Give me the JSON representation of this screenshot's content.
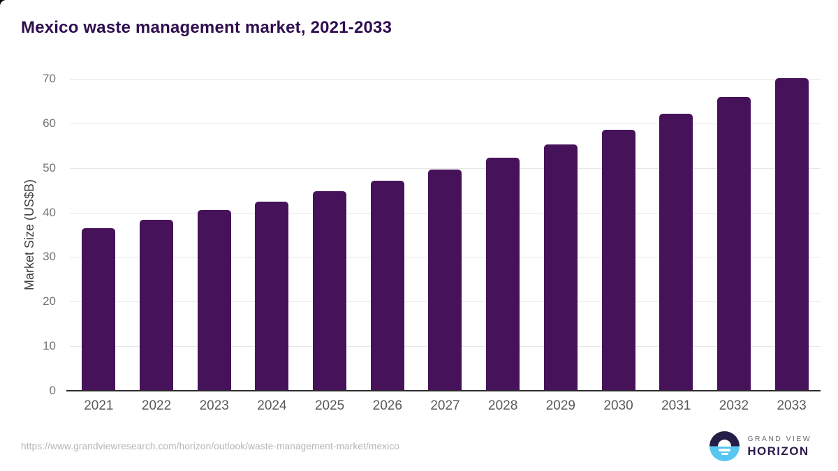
{
  "title": "Mexico waste management market, 2021-2033",
  "chart_data": {
    "type": "bar",
    "categories": [
      "2021",
      "2022",
      "2023",
      "2024",
      "2025",
      "2026",
      "2027",
      "2028",
      "2029",
      "2030",
      "2031",
      "2032",
      "2033"
    ],
    "values": [
      36.5,
      38.4,
      40.5,
      42.5,
      44.8,
      47.1,
      49.6,
      52.3,
      55.3,
      58.5,
      62.1,
      66.0,
      70.2
    ],
    "title": "Mexico waste management market, 2021-2033",
    "xlabel": "",
    "ylabel": "Market Size (US$B)",
    "ylim": [
      0,
      70
    ],
    "yticks": [
      0,
      10,
      20,
      30,
      40,
      50,
      60,
      70
    ],
    "grid": true,
    "legend": false,
    "bar_color": "#46125a"
  },
  "footer": {
    "source_url": "https://www.grandviewresearch.com/horizon/outlook/waste-management-market/mexico"
  },
  "logo": {
    "brand_top": "GRAND VIEW",
    "brand_bottom": "HORIZON",
    "mark": "sunrise-horizon-icon"
  },
  "colors": {
    "title_color": "#300d4f",
    "bar_color": "#46125a",
    "grid_color": "#e7e7e7",
    "baseline_color": "#2b2b2b",
    "ytick_color": "#757575",
    "ytitle_color": "#3f3f3f",
    "xlabel_color": "#595959",
    "url_color": "#b3b3b3",
    "logo_navy": "#241d45",
    "logo_blue": "#57c7f2",
    "logo_gray": "#6d6e71",
    "logo_purple": "#2b1b4d"
  }
}
